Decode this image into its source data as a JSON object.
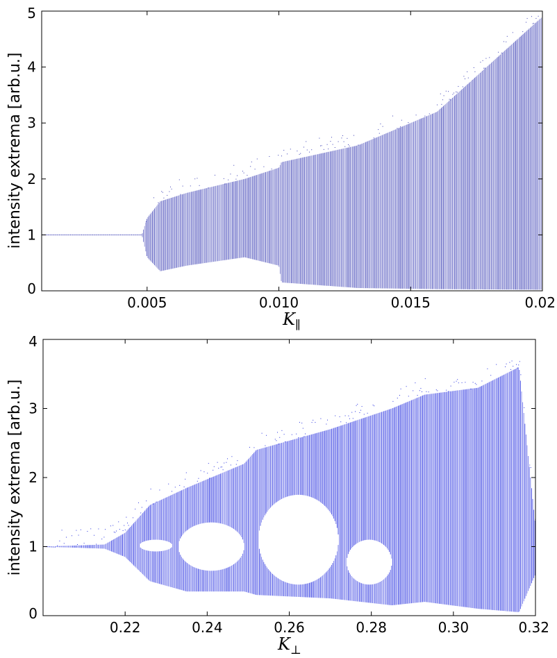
{
  "chart_data": [
    {
      "type": "scatter",
      "title": "",
      "xlabel": "K",
      "xlabel_subscript": "∥",
      "ylabel": "intensity extrema [arb.u.]",
      "xlim": [
        0.001,
        0.02
      ],
      "ylim": [
        0,
        5
      ],
      "xticks": [
        0.005,
        0.01,
        0.015,
        0.02
      ],
      "xtick_labels": [
        "0.005",
        "0.010",
        "0.015",
        "0.02"
      ],
      "yticks": [
        0,
        1,
        2,
        3,
        4,
        5
      ],
      "ytick_labels": [
        "0",
        "1",
        "2",
        "3",
        "4",
        "5"
      ],
      "grid": false,
      "color": "#3b3fb5",
      "bands": [
        {
          "x": 0.001,
          "lo": 1.0,
          "hi": 1.0
        },
        {
          "x": 0.0048,
          "lo": 1.0,
          "hi": 1.0
        },
        {
          "x": 0.005,
          "lo": 0.6,
          "hi": 1.3
        },
        {
          "x": 0.0055,
          "lo": 0.35,
          "hi": 1.6
        },
        {
          "x": 0.0065,
          "lo": 0.45,
          "hi": 1.75
        },
        {
          "x": 0.0087,
          "lo": 0.6,
          "hi": 2.0
        },
        {
          "x": 0.01,
          "lo": 0.45,
          "hi": 2.2
        },
        {
          "x": 0.0101,
          "lo": 0.15,
          "hi": 2.3
        },
        {
          "x": 0.013,
          "lo": 0.05,
          "hi": 2.6
        },
        {
          "x": 0.016,
          "lo": 0.03,
          "hi": 3.2
        },
        {
          "x": 0.02,
          "lo": 0.02,
          "hi": 4.9
        }
      ]
    },
    {
      "type": "scatter",
      "title": "",
      "xlabel": "K",
      "xlabel_subscript": "⊥",
      "ylabel": "intensity extrema [arb.u.]",
      "xlim": [
        0.2,
        0.32
      ],
      "ylim": [
        0,
        4
      ],
      "xticks": [
        0.22,
        0.24,
        0.26,
        0.28,
        0.3,
        0.32
      ],
      "xtick_labels": [
        "0.22",
        "0.24",
        "0.26",
        "0.28",
        "0.30",
        "0.32"
      ],
      "yticks": [
        0,
        1,
        2,
        3,
        4
      ],
      "ytick_labels": [
        "0",
        "1",
        "2",
        "3",
        "4"
      ],
      "grid": false,
      "color": "#2a33e0",
      "bands": [
        {
          "x": 0.2,
          "lo": 1.0,
          "hi": 1.0
        },
        {
          "x": 0.215,
          "lo": 0.97,
          "hi": 1.03
        },
        {
          "x": 0.22,
          "lo": 0.85,
          "hi": 1.2
        },
        {
          "x": 0.226,
          "lo": 0.5,
          "hi": 1.6
        },
        {
          "x": 0.235,
          "lo": 0.35,
          "hi": 1.85
        },
        {
          "x": 0.249,
          "lo": 0.35,
          "hi": 2.2
        },
        {
          "x": 0.252,
          "lo": 0.3,
          "hi": 2.4
        },
        {
          "x": 0.27,
          "lo": 0.25,
          "hi": 2.7
        },
        {
          "x": 0.285,
          "lo": 0.15,
          "hi": 3.0
        },
        {
          "x": 0.293,
          "lo": 0.2,
          "hi": 3.2
        },
        {
          "x": 0.306,
          "lo": 0.1,
          "hi": 3.3
        },
        {
          "x": 0.316,
          "lo": 0.05,
          "hi": 3.6
        },
        {
          "x": 0.32,
          "lo": 0.6,
          "hi": 1.3
        }
      ],
      "gaps": [
        {
          "x0": 0.2235,
          "x1": 0.2315,
          "lo": 0.93,
          "hi": 1.1
        },
        {
          "x0": 0.233,
          "x1": 0.249,
          "lo": 0.65,
          "hi": 1.35
        },
        {
          "x0": 0.2525,
          "x1": 0.272,
          "lo": 0.45,
          "hi": 1.75
        },
        {
          "x0": 0.274,
          "x1": 0.285,
          "lo": 0.45,
          "hi": 1.1
        }
      ]
    }
  ]
}
